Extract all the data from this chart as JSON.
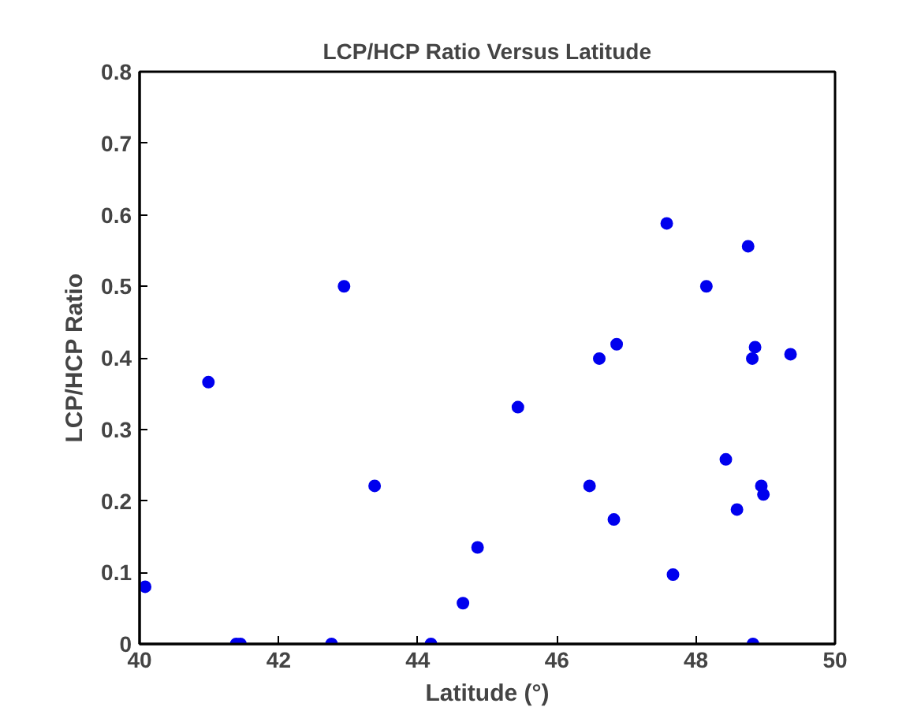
{
  "chart_data": {
    "type": "scatter",
    "title": "LCP/HCP Ratio Versus Latitude",
    "xlabel": "Latitude (°)",
    "ylabel": "LCP/HCP Ratio",
    "x": [
      40.08,
      40.99,
      42.94,
      43.38,
      44.86,
      44.65,
      45.44,
      41.39,
      41.45,
      42.76,
      44.19,
      47.58,
      48.75,
      48.15,
      46.86,
      46.61,
      48.85,
      48.81,
      49.36,
      48.43,
      46.47,
      48.94,
      48.97,
      48.59,
      46.82,
      47.67,
      48.82
    ],
    "series": [
      {
        "color": "#0000ee",
        "values": [
          0.08,
          0.366,
          0.5,
          0.221,
          0.135,
          0.057,
          0.331,
          0,
          0,
          0,
          0,
          0.588,
          0.556,
          0.5,
          0.419,
          0.399,
          0.415,
          0.399,
          0.405,
          0.258,
          0.221,
          0.221,
          0.209,
          0.188,
          0.174,
          0.097,
          0
        ]
      }
    ],
    "xlim": [
      40,
      50
    ],
    "xticks": [
      40,
      42,
      44,
      46,
      48,
      50
    ],
    "ylim": [
      0,
      0.8
    ],
    "yticks": [
      0,
      {
        "value": 0.1,
        "label": "0.1"
      },
      {
        "value": 0.2,
        "label": "0.2"
      },
      {
        "value": 0.3,
        "label": "0.3"
      },
      {
        "value": 0.4,
        "label": "0.4"
      },
      {
        "value": 0.5,
        "label": "0.5"
      },
      {
        "value": 0.6,
        "label": "0.6"
      },
      {
        "value": 0.7,
        "label": "0.7"
      },
      {
        "value": 0.8,
        "label": "0.8"
      }
    ],
    "marker": "circle"
  }
}
